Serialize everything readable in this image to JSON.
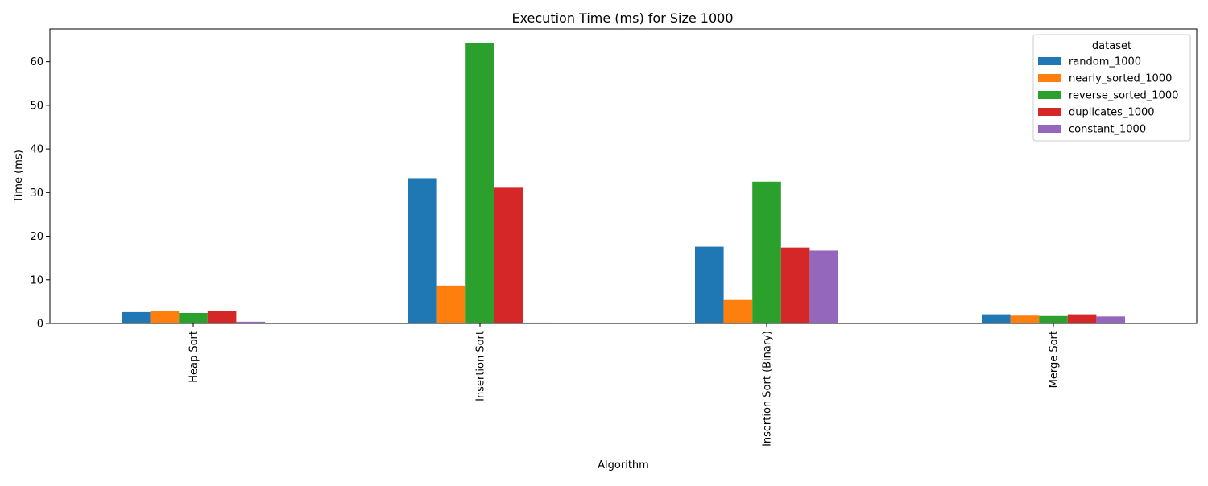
{
  "chart_data": {
    "type": "bar",
    "title": "Execution Time (ms) for Size 1000",
    "xlabel": "Algorithm",
    "ylabel": "Time (ms)",
    "categories": [
      "Heap Sort",
      "Insertion Sort",
      "Insertion Sort (Binary)",
      "Merge Sort"
    ],
    "ylim": [
      0,
      67.5
    ],
    "yticks": [
      0,
      10,
      20,
      30,
      40,
      50,
      60
    ],
    "grid": false,
    "legend": {
      "title": "dataset",
      "placement": "top-right"
    },
    "series": [
      {
        "name": "random_1000",
        "color": "#1f77b4",
        "values": [
          2.6,
          33.3,
          17.6,
          2.1
        ]
      },
      {
        "name": "nearly_sorted_1000",
        "color": "#ff7f0e",
        "values": [
          2.8,
          8.7,
          5.4,
          1.8
        ]
      },
      {
        "name": "reverse_sorted_1000",
        "color": "#2ca02c",
        "values": [
          2.4,
          64.3,
          32.5,
          1.7
        ]
      },
      {
        "name": "duplicates_1000",
        "color": "#d62728",
        "values": [
          2.8,
          31.1,
          17.4,
          2.1
        ]
      },
      {
        "name": "constant_1000",
        "color": "#9467bd",
        "values": [
          0.4,
          0.2,
          16.7,
          1.6
        ]
      }
    ]
  }
}
